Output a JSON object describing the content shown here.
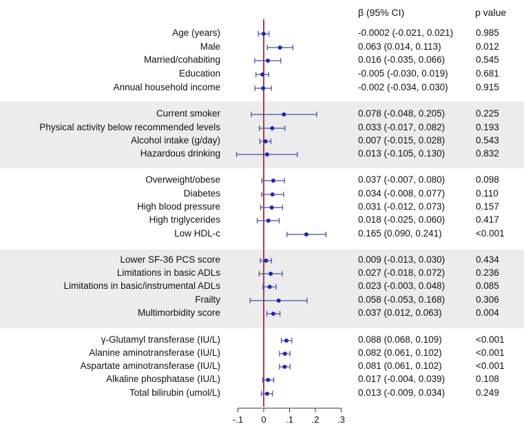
{
  "header": {
    "ci_title": "β (95% CI)",
    "p_title": "p value"
  },
  "chart_data": {
    "type": "forest",
    "title": "",
    "xlabel": "",
    "ylabel": "",
    "xlim": [
      -0.12,
      0.32
    ],
    "reference_line": 0,
    "x_ticks": [
      -0.1,
      0,
      0.1,
      0.2,
      0.3
    ],
    "x_tick_labels": [
      "-.1",
      "0",
      ".1",
      ".2",
      ".3"
    ],
    "groups": [
      {
        "shaded": false,
        "rows": [
          {
            "label": "Age (years)",
            "beta": -0.0002,
            "lower": -0.021,
            "upper": 0.021,
            "ci_text": "-0.0002 (-0.021, 0.021)",
            "p": "0.985"
          },
          {
            "label": "Male",
            "beta": 0.063,
            "lower": 0.014,
            "upper": 0.113,
            "ci_text": "0.063 (0.014, 0.113)",
            "p": "0.012"
          },
          {
            "label": "Married/cohabiting",
            "beta": 0.016,
            "lower": -0.035,
            "upper": 0.066,
            "ci_text": "0.016 (-0.035, 0.066)",
            "p": "0.545"
          },
          {
            "label": "Education",
            "beta": -0.005,
            "lower": -0.03,
            "upper": 0.019,
            "ci_text": "-0.005 (-0.030, 0.019)",
            "p": "0.681"
          },
          {
            "label": "Annual household income",
            "beta": -0.002,
            "lower": -0.034,
            "upper": 0.03,
            "ci_text": "-0.002 (-0.034, 0.030)",
            "p": "0.915"
          }
        ]
      },
      {
        "shaded": true,
        "rows": [
          {
            "label": "Current smoker",
            "beta": 0.078,
            "lower": -0.048,
            "upper": 0.205,
            "ci_text": "0.078 (-0.048, 0.205)",
            "p": "0.225"
          },
          {
            "label": "Physical activity below recommended levels",
            "beta": 0.033,
            "lower": -0.017,
            "upper": 0.082,
            "ci_text": "0.033 (-0.017, 0.082)",
            "p": "0.193"
          },
          {
            "label": "Alcohol intake (g/day)",
            "beta": 0.007,
            "lower": -0.015,
            "upper": 0.028,
            "ci_text": "0.007 (-0.015, 0.028)",
            "p": "0.543"
          },
          {
            "label": "Hazardous drinking",
            "beta": 0.013,
            "lower": -0.105,
            "upper": 0.13,
            "ci_text": "0.013 (-0.105, 0.130)",
            "p": "0.832"
          }
        ]
      },
      {
        "shaded": false,
        "rows": [
          {
            "label": "Overweight/obese",
            "beta": 0.037,
            "lower": -0.007,
            "upper": 0.08,
            "ci_text": "0.037 (-0.007, 0.080)",
            "p": "0.098"
          },
          {
            "label": "Diabetes",
            "beta": 0.034,
            "lower": -0.008,
            "upper": 0.077,
            "ci_text": "0.034 (-0.008, 0.077)",
            "p": "0.110"
          },
          {
            "label": "High blood pressure",
            "beta": 0.031,
            "lower": -0.012,
            "upper": 0.073,
            "ci_text": "0.031 (-0.012, 0.073)",
            "p": "0.157"
          },
          {
            "label": "High triglycerides",
            "beta": 0.018,
            "lower": -0.025,
            "upper": 0.06,
            "ci_text": "0.018 (-0.025, 0.060)",
            "p": "0.417"
          },
          {
            "label": "Low HDL-c",
            "beta": 0.165,
            "lower": 0.09,
            "upper": 0.241,
            "ci_text": "0.165 (0.090, 0.241)",
            "p": "<0.001"
          }
        ]
      },
      {
        "shaded": true,
        "rows": [
          {
            "label": "Lower SF-36 PCS score",
            "beta": 0.009,
            "lower": -0.013,
            "upper": 0.03,
            "ci_text": "0.009 (-0.013, 0.030)",
            "p": "0.434"
          },
          {
            "label": "Limitations in basic ADLs",
            "beta": 0.027,
            "lower": -0.018,
            "upper": 0.072,
            "ci_text": "0.027 (-0.018, 0.072)",
            "p": "0.236"
          },
          {
            "label": "Limitations in basic/instrumental ADLs",
            "beta": 0.023,
            "lower": -0.003,
            "upper": 0.048,
            "ci_text": "0.023 (-0.003, 0.048)",
            "p": "0.085"
          },
          {
            "label": "Frailty",
            "beta": 0.058,
            "lower": -0.053,
            "upper": 0.168,
            "ci_text": "0.058 (-0.053, 0.168)",
            "p": "0.306"
          },
          {
            "label": "Multimorbidity score",
            "beta": 0.037,
            "lower": 0.012,
            "upper": 0.063,
            "ci_text": "0.037 (0.012, 0.063)",
            "p": "0.004"
          }
        ]
      },
      {
        "shaded": false,
        "rows": [
          {
            "label": "γ-Glutamyl transferase (IU/L)",
            "beta": 0.088,
            "lower": 0.068,
            "upper": 0.109,
            "ci_text": "0.088 (0.068, 0.109)",
            "p": "<0.001"
          },
          {
            "label": "Alanine aminotransferase (IU/L)",
            "beta": 0.082,
            "lower": 0.061,
            "upper": 0.102,
            "ci_text": "0.082 (0.061, 0.102)",
            "p": "<0.001"
          },
          {
            "label": "Aspartate aminotransferase (IU/L)",
            "beta": 0.081,
            "lower": 0.061,
            "upper": 0.102,
            "ci_text": "0.081 (0.061, 0.102)",
            "p": "<0.001"
          },
          {
            "label": "Alkaline phosphatase (IU/L)",
            "beta": 0.017,
            "lower": -0.004,
            "upper": 0.039,
            "ci_text": "0.017 (-0.004, 0.039)",
            "p": "0.108"
          },
          {
            "label": "Total bilirubin (umol/L)",
            "beta": 0.013,
            "lower": -0.009,
            "upper": 0.034,
            "ci_text": "0.013 (-0.009, 0.034)",
            "p": "0.249"
          }
        ]
      }
    ]
  },
  "colors": {
    "shade": "#ececec",
    "ref_line": "#b03a48",
    "ci_line": "#3a4fa0",
    "point": "#1a22d0",
    "axis": "#333333"
  }
}
